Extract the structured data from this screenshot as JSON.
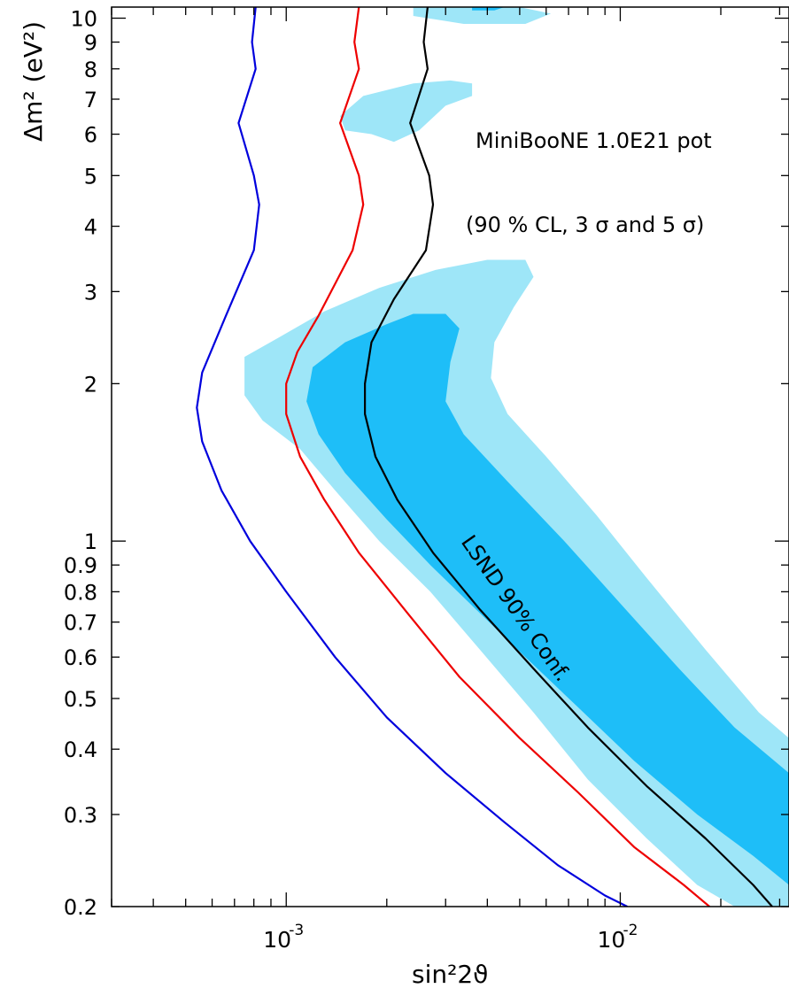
{
  "chart_data": {
    "type": "line",
    "title": "",
    "xlabel": "sin²2ϑ",
    "ylabel": "Δm² (eV²)",
    "x_scale": "log",
    "y_scale": "log",
    "xlim": [
      0.0003,
      0.032
    ],
    "ylim": [
      0.2,
      10.5
    ],
    "grid": false,
    "x_ticks": [
      {
        "value": 0.001,
        "base": "10",
        "exp": "-3"
      },
      {
        "value": 0.01,
        "base": "10",
        "exp": "-2"
      }
    ],
    "y_ticks": [
      {
        "value": 0.2,
        "label": "0.2"
      },
      {
        "value": 0.3,
        "label": "0.3"
      },
      {
        "value": 0.4,
        "label": "0.4"
      },
      {
        "value": 0.5,
        "label": "0.5"
      },
      {
        "value": 0.6,
        "label": "0.6"
      },
      {
        "value": 0.7,
        "label": "0.7"
      },
      {
        "value": 0.8,
        "label": "0.8"
      },
      {
        "value": 0.9,
        "label": "0.9"
      },
      {
        "value": 1,
        "label": "1"
      },
      {
        "value": 2,
        "label": "2"
      },
      {
        "value": 3,
        "label": "3"
      },
      {
        "value": 4,
        "label": "4"
      },
      {
        "value": 5,
        "label": "5"
      },
      {
        "value": 6,
        "label": "6"
      },
      {
        "value": 7,
        "label": "7"
      },
      {
        "value": 8,
        "label": "8"
      },
      {
        "value": 9,
        "label": "9"
      },
      {
        "value": 10,
        "label": "10"
      }
    ],
    "annotations": {
      "experiment": "MiniBooNE 1.0E21 pot",
      "confidence": "(90 % CL, 3 σ and 5 σ)",
      "lsnd": "LSND 90% Conf."
    },
    "series": [
      {
        "color": "#0000dd",
        "points": [
          [
            0.00081,
            10.5
          ],
          [
            0.00079,
            9.0
          ],
          [
            0.00081,
            8.0
          ],
          [
            0.00072,
            6.3
          ],
          [
            0.0008,
            5.0
          ],
          [
            0.00083,
            4.4
          ],
          [
            0.0008,
            3.6
          ],
          [
            0.00066,
            2.7
          ],
          [
            0.00056,
            2.1
          ],
          [
            0.00054,
            1.8
          ],
          [
            0.00056,
            1.55
          ],
          [
            0.00064,
            1.25
          ],
          [
            0.00078,
            1.0
          ],
          [
            0.001,
            0.8
          ],
          [
            0.0014,
            0.6
          ],
          [
            0.002,
            0.46
          ],
          [
            0.003,
            0.36
          ],
          [
            0.0045,
            0.29
          ],
          [
            0.0065,
            0.24
          ],
          [
            0.009,
            0.21
          ],
          [
            0.0105,
            0.2
          ]
        ]
      },
      {
        "color": "#ee0000",
        "points": [
          [
            0.00165,
            10.5
          ],
          [
            0.0016,
            9.0
          ],
          [
            0.00165,
            8.0
          ],
          [
            0.00145,
            6.3
          ],
          [
            0.00165,
            5.0
          ],
          [
            0.0017,
            4.4
          ],
          [
            0.00158,
            3.6
          ],
          [
            0.00125,
            2.7
          ],
          [
            0.00108,
            2.3
          ],
          [
            0.001,
            2.0
          ],
          [
            0.001,
            1.75
          ],
          [
            0.0011,
            1.45
          ],
          [
            0.0013,
            1.2
          ],
          [
            0.00165,
            0.95
          ],
          [
            0.0023,
            0.73
          ],
          [
            0.0033,
            0.55
          ],
          [
            0.005,
            0.42
          ],
          [
            0.0075,
            0.33
          ],
          [
            0.011,
            0.26
          ],
          [
            0.0155,
            0.22
          ],
          [
            0.0185,
            0.2
          ]
        ]
      },
      {
        "color": "#000000",
        "points": [
          [
            0.00265,
            10.5
          ],
          [
            0.00258,
            9.0
          ],
          [
            0.00265,
            8.0
          ],
          [
            0.00235,
            6.3
          ],
          [
            0.00268,
            5.0
          ],
          [
            0.00275,
            4.4
          ],
          [
            0.00262,
            3.6
          ],
          [
            0.0021,
            2.9
          ],
          [
            0.0018,
            2.4
          ],
          [
            0.00172,
            2.0
          ],
          [
            0.00172,
            1.75
          ],
          [
            0.00185,
            1.45
          ],
          [
            0.00215,
            1.2
          ],
          [
            0.00275,
            0.95
          ],
          [
            0.0038,
            0.74
          ],
          [
            0.0055,
            0.57
          ],
          [
            0.008,
            0.44
          ],
          [
            0.012,
            0.34
          ],
          [
            0.018,
            0.27
          ],
          [
            0.025,
            0.22
          ],
          [
            0.0285,
            0.2
          ]
        ]
      }
    ],
    "regions": [
      {
        "level": "outer",
        "color": "#9ee6f8",
        "points": [
          [
            0.0024,
            10.5
          ],
          [
            0.005,
            10.5
          ],
          [
            0.0062,
            10.2
          ],
          [
            0.0052,
            9.75
          ],
          [
            0.0034,
            9.75
          ],
          [
            0.0024,
            10.1
          ]
        ]
      },
      {
        "level": "outer",
        "color": "#9ee6f8",
        "points": [
          [
            0.00145,
            6.5
          ],
          [
            0.0017,
            7.1
          ],
          [
            0.0024,
            7.5
          ],
          [
            0.0031,
            7.6
          ],
          [
            0.0036,
            7.5
          ],
          [
            0.0036,
            7.1
          ],
          [
            0.003,
            6.8
          ],
          [
            0.0025,
            6.1
          ],
          [
            0.0021,
            5.8
          ],
          [
            0.0018,
            6.0
          ],
          [
            0.0015,
            6.1
          ]
        ]
      },
      {
        "level": "outer",
        "color": "#9ee6f8",
        "points": [
          [
            0.00075,
            2.25
          ],
          [
            0.00095,
            2.45
          ],
          [
            0.0013,
            2.75
          ],
          [
            0.0019,
            3.05
          ],
          [
            0.0028,
            3.3
          ],
          [
            0.004,
            3.45
          ],
          [
            0.0052,
            3.45
          ],
          [
            0.0055,
            3.2
          ],
          [
            0.0048,
            2.8
          ],
          [
            0.0042,
            2.4
          ],
          [
            0.0041,
            2.05
          ],
          [
            0.0046,
            1.75
          ],
          [
            0.006,
            1.45
          ],
          [
            0.0085,
            1.12
          ],
          [
            0.012,
            0.85
          ],
          [
            0.018,
            0.62
          ],
          [
            0.026,
            0.47
          ],
          [
            0.032,
            0.42
          ],
          [
            0.032,
            0.2
          ],
          [
            0.022,
            0.2
          ],
          [
            0.017,
            0.22
          ],
          [
            0.012,
            0.27
          ],
          [
            0.008,
            0.35
          ],
          [
            0.0055,
            0.47
          ],
          [
            0.0038,
            0.62
          ],
          [
            0.0027,
            0.8
          ],
          [
            0.0019,
            1.0
          ],
          [
            0.0014,
            1.25
          ],
          [
            0.0011,
            1.5
          ],
          [
            0.00085,
            1.7
          ],
          [
            0.00075,
            1.9
          ]
        ]
      },
      {
        "level": "inner",
        "color": "#1ebef8",
        "points": [
          [
            0.0036,
            10.5
          ],
          [
            0.0045,
            10.5
          ],
          [
            0.0042,
            10.35
          ],
          [
            0.0036,
            10.35
          ]
        ]
      },
      {
        "level": "inner",
        "color": "#1ebef8",
        "points": [
          [
            0.0012,
            2.15
          ],
          [
            0.0015,
            2.4
          ],
          [
            0.002,
            2.6
          ],
          [
            0.0024,
            2.72
          ],
          [
            0.003,
            2.72
          ],
          [
            0.0033,
            2.55
          ],
          [
            0.0031,
            2.2
          ],
          [
            0.003,
            1.85
          ],
          [
            0.0034,
            1.6
          ],
          [
            0.0046,
            1.3
          ],
          [
            0.0068,
            1.0
          ],
          [
            0.01,
            0.76
          ],
          [
            0.015,
            0.57
          ],
          [
            0.022,
            0.44
          ],
          [
            0.032,
            0.36
          ],
          [
            0.032,
            0.22
          ],
          [
            0.025,
            0.25
          ],
          [
            0.017,
            0.3
          ],
          [
            0.011,
            0.38
          ],
          [
            0.0075,
            0.48
          ],
          [
            0.0052,
            0.6
          ],
          [
            0.0037,
            0.74
          ],
          [
            0.0027,
            0.9
          ],
          [
            0.002,
            1.1
          ],
          [
            0.0015,
            1.35
          ],
          [
            0.00125,
            1.6
          ],
          [
            0.00115,
            1.85
          ]
        ]
      }
    ]
  }
}
